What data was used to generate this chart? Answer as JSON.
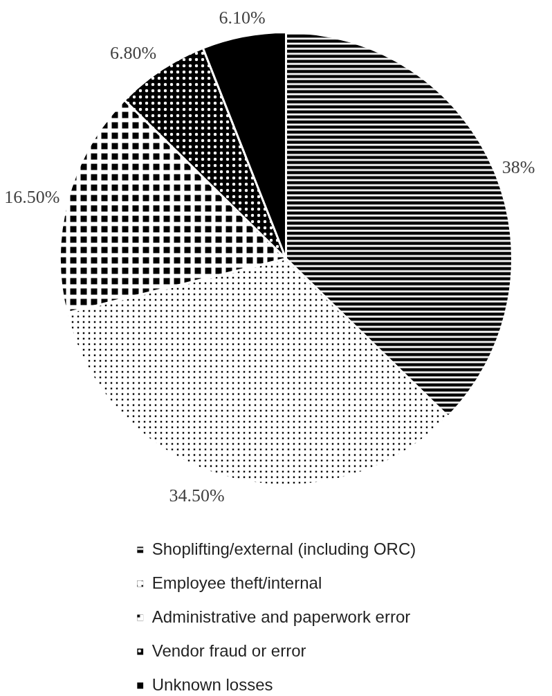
{
  "chart_data": {
    "type": "pie",
    "categories": [
      "Shoplifting/external (including ORC)",
      "Employee theft/internal",
      "Administrative and paperwork error",
      "Vendor fraud or error",
      "Unknown losses"
    ],
    "values": [
      38,
      34.5,
      16.5,
      6.8,
      6.1
    ],
    "colors": [
      "#000000",
      "#000000",
      "#000000",
      "#000000",
      "#000000"
    ],
    "value_labels": [
      "38%",
      "34.50%",
      "16.50%",
      "6.80%",
      "6.10%"
    ],
    "legend": "bottom"
  }
}
